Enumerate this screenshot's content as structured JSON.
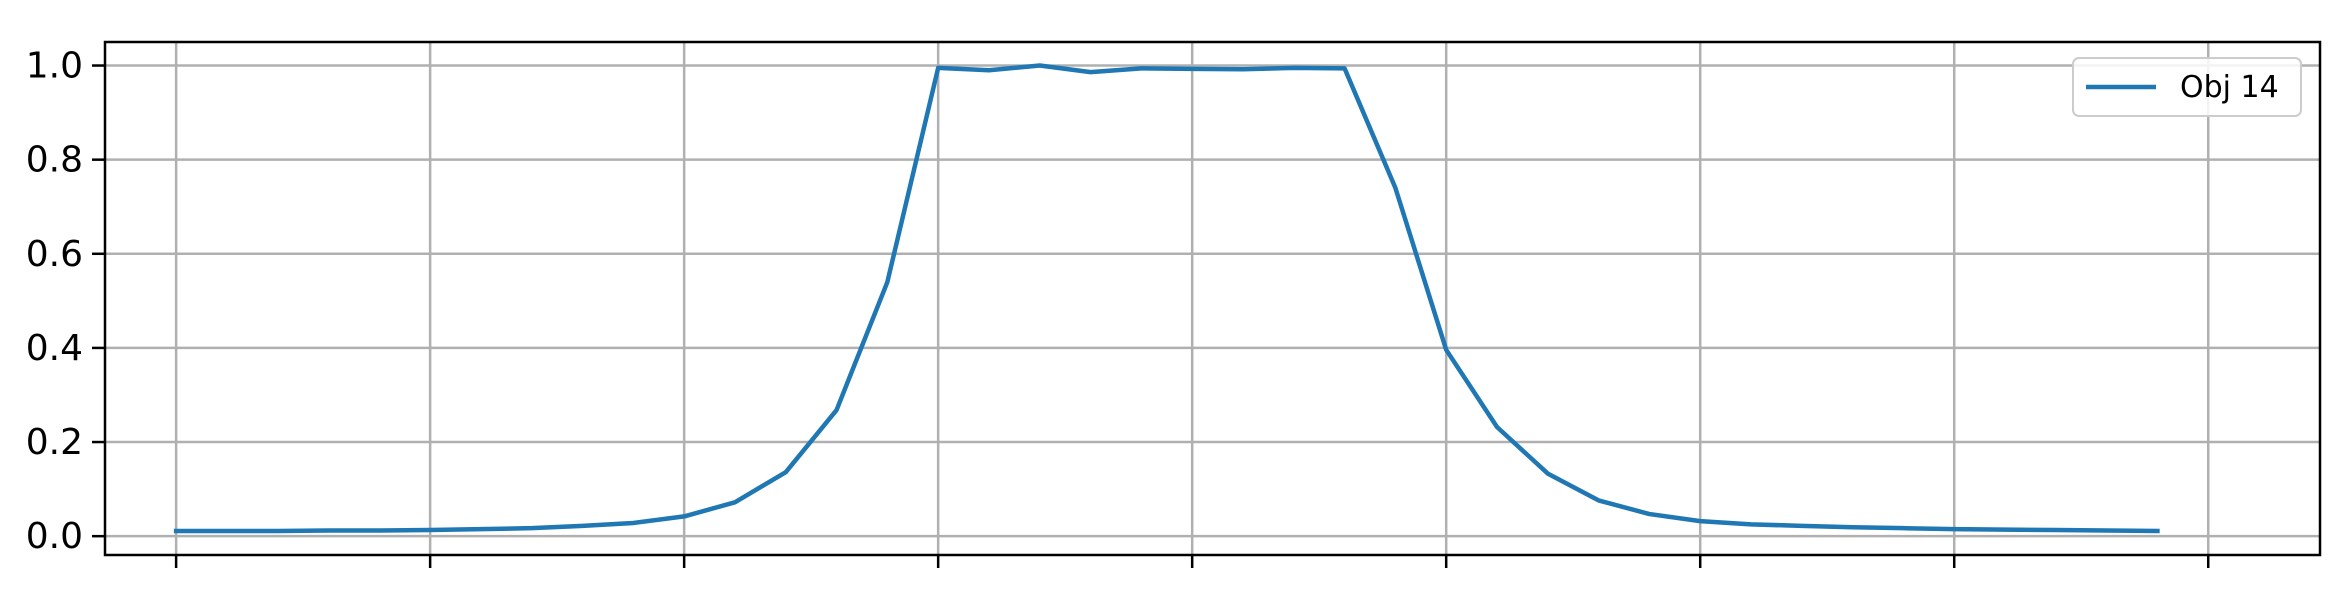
{
  "chart_data": {
    "type": "line",
    "title": "",
    "xlabel": "",
    "ylabel": "",
    "xlim": [
      -1.4,
      42.2
    ],
    "ylim": [
      -0.04,
      1.05
    ],
    "xticks": [
      0,
      5,
      10,
      15,
      20,
      25,
      30,
      35,
      40
    ],
    "yticks": [
      0.0,
      0.2,
      0.4,
      0.6,
      0.8,
      1.0
    ],
    "ytick_labels": [
      "0.0",
      "0.2",
      "0.4",
      "0.6",
      "0.8",
      "1.0"
    ],
    "grid": true,
    "legend_position": "top-right",
    "series": [
      {
        "name": "Obj 14",
        "color": "#1f77b4",
        "x": [
          0,
          1,
          2,
          3,
          4,
          5,
          6,
          7,
          8,
          9,
          10,
          11,
          12,
          13,
          14,
          15,
          16,
          17,
          18,
          19,
          20,
          21,
          22,
          23,
          24,
          25,
          26,
          27,
          28,
          29,
          30,
          31,
          32,
          33,
          34,
          35,
          36,
          37,
          38,
          39
        ],
        "y": [
          0.011,
          0.011,
          0.011,
          0.012,
          0.012,
          0.013,
          0.015,
          0.017,
          0.022,
          0.028,
          0.042,
          0.072,
          0.136,
          0.268,
          0.54,
          0.995,
          0.99,
          1.0,
          0.986,
          0.994,
          0.993,
          0.992,
          0.995,
          0.994,
          0.74,
          0.396,
          0.232,
          0.133,
          0.076,
          0.047,
          0.032,
          0.025,
          0.022,
          0.019,
          0.017,
          0.015,
          0.014,
          0.013,
          0.012,
          0.011
        ]
      }
    ]
  }
}
